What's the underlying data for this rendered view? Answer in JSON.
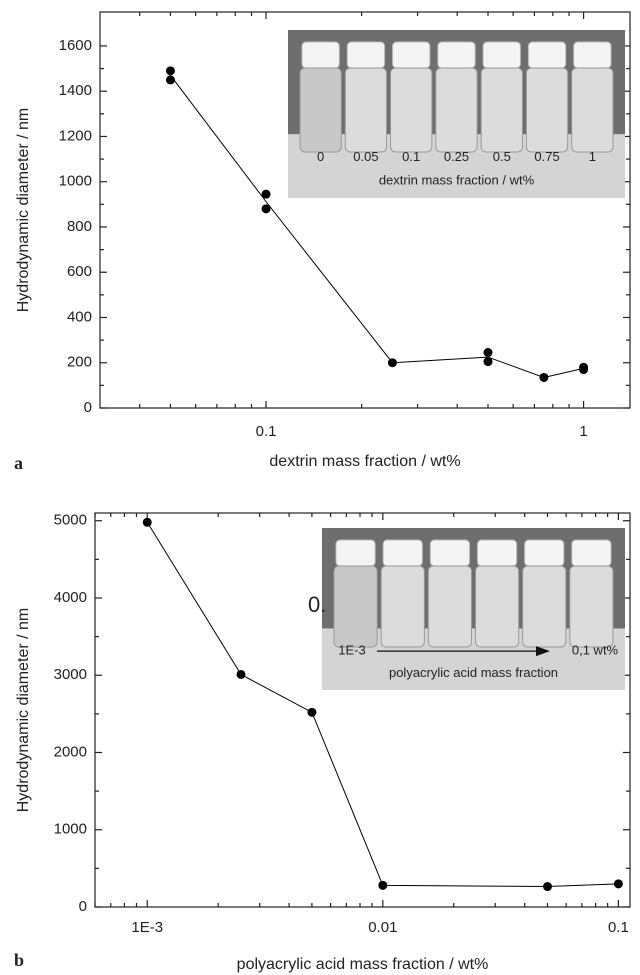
{
  "chart_data": [
    {
      "type": "scatter-line",
      "panel_label": "a",
      "x_label": "dextrin mass fraction  /  wt%",
      "y_label": "Hydrodynamic diameter  /  nm",
      "log_x": true,
      "xlim": [
        0.03,
        1.4
      ],
      "xticks": [
        0.1,
        1
      ],
      "ylim": [
        0,
        1750
      ],
      "yticks": [
        0,
        200,
        400,
        600,
        800,
        1000,
        1200,
        1400,
        1600
      ],
      "color": "#000000",
      "points": {
        "x": [
          0.05,
          0.05,
          0.1,
          0.1,
          0.25,
          0.5,
          0.5,
          0.75,
          1,
          1
        ],
        "y": [
          1490,
          1450,
          945,
          880,
          200,
          245,
          205,
          135,
          180,
          170
        ]
      },
      "line": {
        "x": [
          0.05,
          0.1,
          0.25,
          0.5,
          0.75,
          1
        ],
        "y": [
          1470,
          912,
          200,
          225,
          135,
          175
        ]
      },
      "inset": {
        "labels": [
          "0",
          "0.05",
          "0.1",
          "0.25",
          "0.5",
          "0.75",
          "1"
        ],
        "caption": "dextrin mass fraction  /  wt%"
      }
    },
    {
      "type": "scatter-line",
      "panel_label": "b",
      "x_label": "polyacrylic acid mass fraction  /  wt%",
      "y_label": "Hydrodynamic diameter  /  nm",
      "log_x": true,
      "xlim": [
        0.0006,
        0.112
      ],
      "xticks": [
        {
          "value": 0.001,
          "label": "1E-3"
        },
        0.01,
        0.1
      ],
      "ylim": [
        0,
        5100
      ],
      "yticks": [
        0,
        1000,
        2000,
        3000,
        4000,
        5000
      ],
      "color": "#000000",
      "points": {
        "x": [
          0.001,
          0.0025,
          0.005,
          0.01,
          0.05,
          0.1
        ],
        "y": [
          4980,
          3010,
          2520,
          280,
          265,
          300
        ]
      },
      "line": {
        "x": [
          0.001,
          0.0025,
          0.005,
          0.01,
          0.05,
          0.1
        ],
        "y": [
          4980,
          3010,
          2520,
          280,
          265,
          300
        ]
      },
      "inset": {
        "stray_text": "0.",
        "start_label": "1E-3",
        "end_label": "0,1 wt%",
        "caption": "polyacrylic acid mass fraction"
      }
    }
  ]
}
